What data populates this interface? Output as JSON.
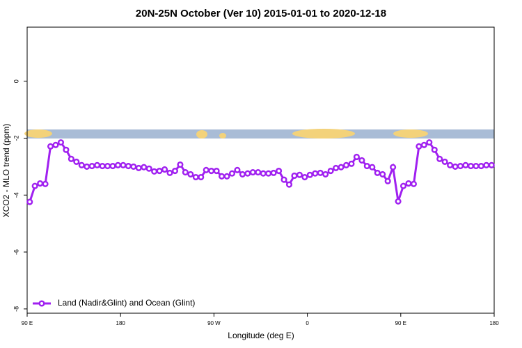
{
  "chart_data": {
    "type": "line",
    "title": "20N-25N October (Ver 10)   2015-01-01 to 2020-12-18",
    "x_label": "Longitude (deg E)",
    "y_label": "XCO2 - MLO trend (ppm)",
    "x": [
      92.5,
      97.5,
      102.5,
      107.5,
      112.5,
      117.5,
      122.5,
      127.5,
      132.5,
      137.5,
      142.5,
      147.5,
      152.5,
      157.5,
      162.5,
      167.5,
      172.5,
      177.5,
      182.5,
      187.5,
      192.5,
      197.5,
      202.5,
      207.5,
      212.5,
      217.5,
      222.5,
      227.5,
      232.5,
      237.5,
      242.5,
      247.5,
      252.5,
      257.5,
      262.5,
      267.5,
      272.5,
      277.5,
      282.5,
      287.5,
      292.5,
      297.5,
      302.5,
      307.5,
      312.5,
      317.5,
      322.5,
      327.5,
      332.5,
      337.5,
      342.5,
      347.5,
      352.5,
      357.5,
      362.5,
      367.5,
      372.5,
      377.5,
      382.5,
      387.5,
      392.5,
      397.5,
      402.5,
      407.5,
      412.5,
      417.5,
      422.5,
      427.5,
      432.5,
      437.5,
      442.5,
      447.5,
      452.5,
      457.5,
      462.5,
      467.5,
      472.5,
      477.5,
      482.5,
      487.5,
      492.5,
      497.5,
      502.5,
      507.5,
      512.5,
      517.5,
      522.5,
      527.5,
      532.5,
      537.5
    ],
    "series": [
      {
        "name": "Land (Nadir&Glint) and Ocean (Glint)",
        "color": "#a020f0",
        "values": [
          -4.24,
          -3.68,
          -3.59,
          -3.61,
          -2.29,
          -2.24,
          -2.15,
          -2.41,
          -2.73,
          -2.83,
          -2.95,
          -3.0,
          -2.98,
          -2.95,
          -2.98,
          -2.98,
          -2.98,
          -2.95,
          -2.95,
          -2.98,
          -3.0,
          -3.05,
          -3.02,
          -3.07,
          -3.17,
          -3.15,
          -3.1,
          -3.22,
          -3.15,
          -2.93,
          -3.2,
          -3.27,
          -3.37,
          -3.37,
          -3.12,
          -3.15,
          -3.15,
          -3.34,
          -3.34,
          -3.24,
          -3.12,
          -3.27,
          -3.24,
          -3.2,
          -3.2,
          -3.24,
          -3.24,
          -3.22,
          -3.15,
          -3.46,
          -3.63,
          -3.32,
          -3.29,
          -3.37,
          -3.29,
          -3.24,
          -3.22,
          -3.27,
          -3.15,
          -3.05,
          -3.02,
          -2.95,
          -2.9,
          -2.66,
          -2.78,
          -2.98,
          -3.02,
          -3.22,
          -3.27,
          -3.51,
          -3.02,
          -4.22,
          -3.68,
          -3.59,
          -3.61,
          -2.29,
          -2.24,
          -2.15,
          -2.41,
          -2.73,
          -2.83,
          -2.95,
          -3.0,
          -2.98,
          -2.95,
          -2.98,
          -2.98,
          -2.98,
          -2.95,
          -2.95
        ]
      }
    ],
    "xlim": [
      90,
      540
    ],
    "xticks": [
      {
        "value": 90,
        "label": "90 E"
      },
      180,
      {
        "value": 270,
        "label": "90 W"
      },
      {
        "value": 360,
        "label": "0"
      },
      {
        "value": 450,
        "label": "90 E"
      },
      {
        "value": 540,
        "label": "180"
      }
    ],
    "ylim": [
      -8.15,
      1.9
    ],
    "yticks": [
      -8,
      -6,
      -4,
      -2,
      0
    ],
    "legend": "bottom-left"
  }
}
